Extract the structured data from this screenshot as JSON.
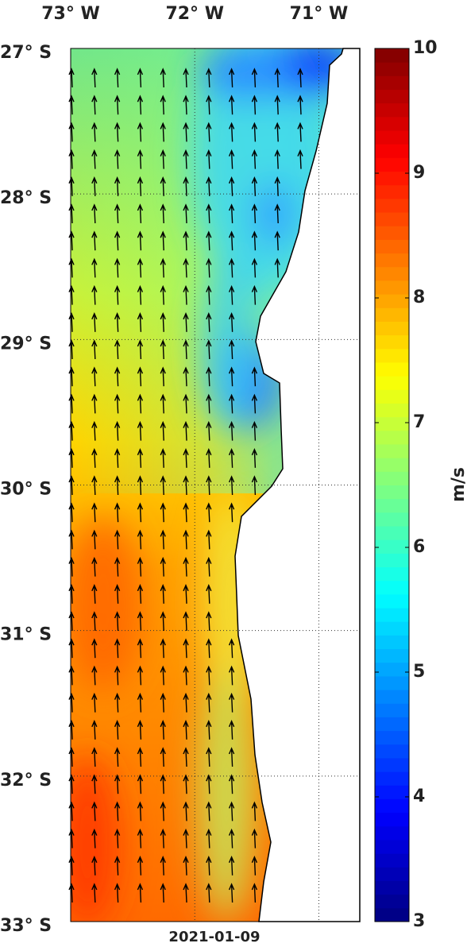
{
  "map": {
    "lonlim": [
      -73,
      -70.67
    ],
    "latlim": [
      -27,
      -33
    ],
    "lon_ticks": [
      {
        "value": -73,
        "label": "73° W"
      },
      {
        "value": -72,
        "label": "72° W"
      },
      {
        "value": -71,
        "label": "71° W"
      }
    ],
    "lat_ticks": [
      {
        "value": -27,
        "label": "27° S"
      },
      {
        "value": -28,
        "label": "28° S"
      },
      {
        "value": -29,
        "label": "29° S"
      },
      {
        "value": -30,
        "label": "30° S"
      },
      {
        "value": -31,
        "label": "31° S"
      },
      {
        "value": -32,
        "label": "32° S"
      },
      {
        "value": -33,
        "label": "33° S"
      }
    ],
    "date": "2021-01-09"
  },
  "colorbar": {
    "label": "m/s",
    "lim": [
      3,
      10
    ],
    "ticks": [
      3,
      4,
      5,
      6,
      7,
      8,
      9,
      10
    ]
  }
}
